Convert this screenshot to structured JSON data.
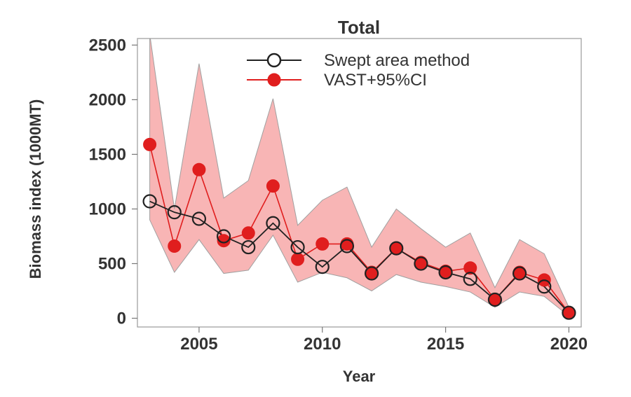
{
  "chart_data": {
    "type": "line",
    "title": "Total",
    "xlabel": "Year",
    "ylabel": "Biomass index (1000MT)",
    "xlim": [
      2002.5,
      2020.5
    ],
    "ylim": [
      -80,
      2560
    ],
    "xticks": [
      2005,
      2010,
      2015,
      2020
    ],
    "yticks": [
      0,
      500,
      1000,
      1500,
      2000,
      2500
    ],
    "legend": {
      "placement": "top-right"
    },
    "grid": false,
    "colors": {
      "swept": "#222222",
      "vast": "#e01e1e",
      "ci_fill": "#f7a8a8",
      "ci_edge": "#a0a0a0"
    },
    "series": [
      {
        "name": "Swept area method",
        "marker": "open-circle",
        "x": [
          2003,
          2004,
          2005,
          2006,
          2007,
          2008,
          2009,
          2010,
          2011,
          2012,
          2013,
          2014,
          2015,
          2016,
          2017,
          2018,
          2019,
          2020
        ],
        "values": [
          1070,
          970,
          910,
          750,
          650,
          870,
          650,
          470,
          660,
          410,
          640,
          500,
          420,
          360,
          170,
          410,
          290,
          50
        ]
      },
      {
        "name": "VAST+95%CI",
        "marker": "filled-circle",
        "x": [
          2003,
          2004,
          2005,
          2006,
          2007,
          2008,
          2009,
          2010,
          2011,
          2012,
          2013,
          2014,
          2015,
          2016,
          2017,
          2018,
          2019,
          2020
        ],
        "values": [
          1590,
          660,
          1360,
          710,
          780,
          1210,
          540,
          680,
          680,
          420,
          640,
          510,
          430,
          460,
          170,
          420,
          350,
          50
        ],
        "ci_upper": [
          2600,
          1000,
          2330,
          1100,
          1260,
          2010,
          850,
          1080,
          1200,
          650,
          1000,
          820,
          650,
          780,
          280,
          720,
          590,
          100
        ],
        "ci_lower": [
          900,
          420,
          720,
          410,
          440,
          760,
          330,
          420,
          370,
          250,
          400,
          330,
          290,
          240,
          100,
          240,
          200,
          20
        ]
      }
    ]
  }
}
